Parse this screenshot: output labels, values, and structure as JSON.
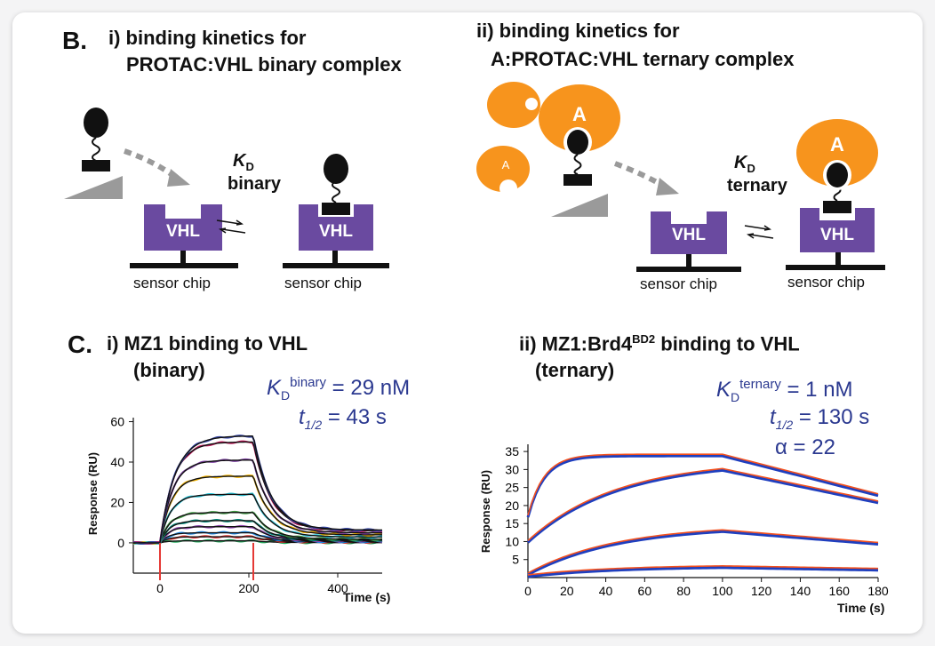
{
  "panel_b": {
    "label": "B.",
    "left_title_l1": "i) binding kinetics for",
    "left_title_l2": "PROTAC:VHL binary complex",
    "right_title_l1": "ii) binding kinetics for",
    "right_title_l2": "A:PROTAC:VHL ternary complex",
    "kd_k": "K",
    "kd_sub": "D",
    "binary_word": "binary",
    "ternary_word": "ternary",
    "vhl": "VHL",
    "sensor_chip": "sensor chip",
    "a_label": "A"
  },
  "panel_c": {
    "label": "C.",
    "left_title_l1": "i) MZ1 binding to VHL",
    "left_title_l2": "(binary)",
    "right_title_prefix": "ii) MZ1:Brd4",
    "right_title_sup": "BD2",
    "right_title_suffix": " binding to VHL",
    "right_title_l2": "(ternary)",
    "binary_kd_sup": "binary",
    "binary_kd_value": "= 29 nM",
    "binary_t_value": "= 43 s",
    "ternary_kd_sup": "ternary",
    "ternary_kd_value": "= 1 nM",
    "ternary_t_value": "= 130 s",
    "alpha_text": "α = 22",
    "t_italic": "t",
    "t_sub": "1/2",
    "k_italic": "K",
    "k_sub": "D"
  },
  "colors": {
    "vhl_purple": "#6a4aa0",
    "orange": "#f7941d",
    "text_blue": "#2b3990",
    "arrow_gray": "#9a9a9a",
    "red_marker": "#e53935"
  },
  "chart_data": [
    {
      "type": "line",
      "title": "",
      "xlabel": "Time (s)",
      "ylabel": "Response (RU)",
      "xlim": [
        -60,
        500
      ],
      "ylim": [
        -15,
        62
      ],
      "xticks": [
        0,
        200,
        400
      ],
      "yticks": [
        0,
        20,
        40,
        60
      ],
      "grid": false,
      "association": [
        0,
        210
      ],
      "series": [
        {
          "plateau": 1,
          "color": "#27ae60"
        },
        {
          "plateau": 3,
          "color": "#e53935"
        },
        {
          "plateau": 5,
          "color": "#1e88e5"
        },
        {
          "plateau": 8,
          "color": "#8e44ad"
        },
        {
          "plateau": 11,
          "color": "#00897b"
        },
        {
          "plateau": 15,
          "color": "#43a047"
        },
        {
          "plateau": 24,
          "color": "#26c6da"
        },
        {
          "plateau": 33,
          "color": "#f4b400"
        },
        {
          "plateau": 41,
          "color": "#7b3fa0"
        },
        {
          "plateau": 50,
          "color": "#c2185b"
        },
        {
          "plateau": 53,
          "color": "#3949ab"
        }
      ]
    },
    {
      "type": "line",
      "title": "",
      "xlabel": "Time (s)",
      "ylabel": "Response (RU)",
      "xlim": [
        0,
        180
      ],
      "ylim": [
        0,
        37
      ],
      "xticks": [
        0,
        20,
        40,
        60,
        80,
        100,
        120,
        140,
        160,
        180
      ],
      "yticks": [
        5,
        10,
        15,
        20,
        25,
        30,
        35
      ],
      "grid": false,
      "series": [
        {
          "start": 17,
          "peak": 34,
          "end": 23,
          "fast": true
        },
        {
          "start": 10,
          "peak": 30,
          "end": 21,
          "fast": false
        },
        {
          "start": 1,
          "peak": 13,
          "end": 9.5,
          "fast": false
        },
        {
          "start": 0.5,
          "peak": 3,
          "end": 2.3,
          "fast": false
        }
      ]
    }
  ]
}
